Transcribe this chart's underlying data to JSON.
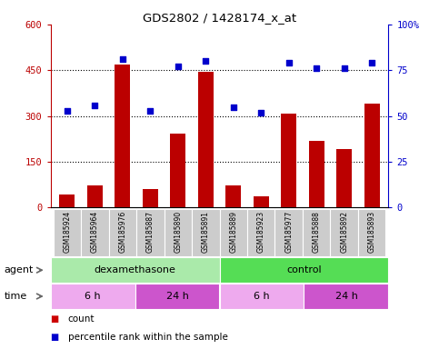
{
  "title": "GDS2802 / 1428174_x_at",
  "samples": [
    "GSM185924",
    "GSM185964",
    "GSM185976",
    "GSM185887",
    "GSM185890",
    "GSM185891",
    "GSM185889",
    "GSM185923",
    "GSM185977",
    "GSM185888",
    "GSM185892",
    "GSM185893"
  ],
  "counts": [
    42,
    72,
    468,
    62,
    242,
    445,
    72,
    38,
    308,
    218,
    192,
    342
  ],
  "percentiles": [
    53,
    56,
    81,
    53,
    77,
    80,
    55,
    52,
    79,
    76,
    76,
    79
  ],
  "bar_color": "#bb0000",
  "scatter_color": "#0000cc",
  "ylim_left": [
    0,
    600
  ],
  "ylim_right": [
    0,
    100
  ],
  "yticks_left": [
    0,
    150,
    300,
    450,
    600
  ],
  "yticks_right": [
    0,
    25,
    50,
    75,
    100
  ],
  "ytick_labels_left": [
    "0",
    "150",
    "300",
    "450",
    "600"
  ],
  "ytick_labels_right": [
    "0",
    "25",
    "50",
    "75",
    "100%"
  ],
  "agent_groups": [
    {
      "label": "dexamethasone",
      "start": 0,
      "end": 6,
      "color": "#aaeaaa"
    },
    {
      "label": "control",
      "start": 6,
      "end": 12,
      "color": "#55dd55"
    }
  ],
  "time_groups": [
    {
      "label": "6 h",
      "start": 0,
      "end": 3,
      "color": "#eeaaee"
    },
    {
      "label": "24 h",
      "start": 3,
      "end": 6,
      "color": "#cc55cc"
    },
    {
      "label": "6 h",
      "start": 6,
      "end": 9,
      "color": "#eeaaee"
    },
    {
      "label": "24 h",
      "start": 9,
      "end": 12,
      "color": "#cc55cc"
    }
  ],
  "legend_count_color": "#cc0000",
  "legend_pct_color": "#0000cc",
  "tick_area_color": "#cccccc",
  "label_agent": "agent",
  "label_time": "time",
  "label_count": "count",
  "label_pct": "percentile rank within the sample",
  "dotted_lines": [
    150,
    300,
    450
  ],
  "bar_width": 0.55
}
